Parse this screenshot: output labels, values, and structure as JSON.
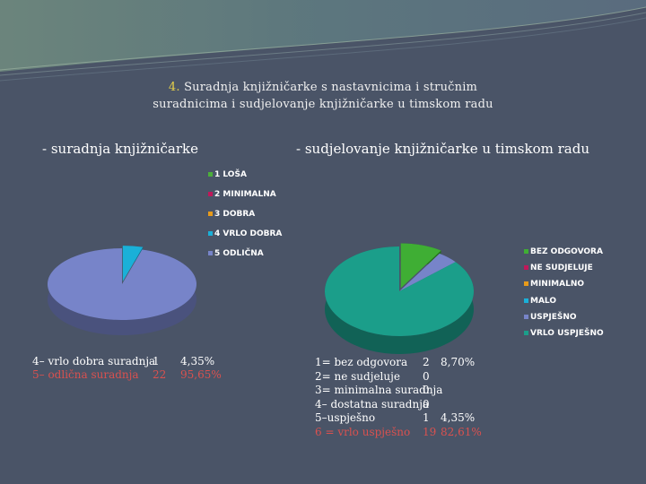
{
  "slide": {
    "title_number": "4.",
    "title_line1": "Suradnja knjižničarke s nastavnicima i stručnim",
    "title_line2": "suradnicima i sudjelovanje knjižničarke u timskom radu"
  },
  "chart_data": [
    {
      "type": "pie",
      "title": "- suradnja knjižničarke",
      "labels": [
        "1 LOŠA",
        "2 MINIMALNA",
        "3 DOBRA",
        "4 VRLO DOBRA",
        "5 ODLIČNA"
      ],
      "values": [
        0,
        0,
        0,
        1,
        22
      ],
      "colors": [
        "#4caf3a",
        "#c0185a",
        "#e89b1a",
        "#1ab0d8",
        "#7784c9"
      ],
      "legend_position": "right",
      "summary": [
        {
          "label": "4– vrlo dobra suradnja",
          "count": "1",
          "percent": "4,35%",
          "highlight": false
        },
        {
          "label": "5– odlična suradnja",
          "count": "22",
          "percent": "95,65%",
          "highlight": true
        }
      ]
    },
    {
      "type": "pie",
      "title": "- sudjelovanje knjižničarke u timskom radu",
      "labels": [
        "BEZ ODGOVORA",
        "NE SUDJELUJE",
        "MINIMALNO",
        "MALO",
        "USPJEŠNO",
        "VRLO USPJEŠNO"
      ],
      "values": [
        2,
        0,
        0,
        0,
        1,
        19
      ],
      "colors": [
        "#3fae34",
        "#c0185a",
        "#e89b1a",
        "#1ab0d8",
        "#7784c9",
        "#1b9e8a"
      ],
      "legend_position": "right",
      "summary": [
        {
          "label": "1= bez odgovora",
          "count": "2",
          "percent": "8,70%",
          "highlight": false
        },
        {
          "label": "2= ne sudjeluje",
          "count": "0",
          "percent": "",
          "highlight": false
        },
        {
          "label": "3= minimalna suradnja",
          "count": "0",
          "percent": "",
          "highlight": false
        },
        {
          "label": "4– dostatna suradnja",
          "count": "0",
          "percent": "",
          "highlight": false
        },
        {
          "label": "5–uspješno",
          "count": "1",
          "percent": "4,35%",
          "highlight": false
        },
        {
          "label": "6 = vrlo uspješno",
          "count": "19",
          "percent": "82,61%",
          "highlight": true
        }
      ]
    }
  ]
}
